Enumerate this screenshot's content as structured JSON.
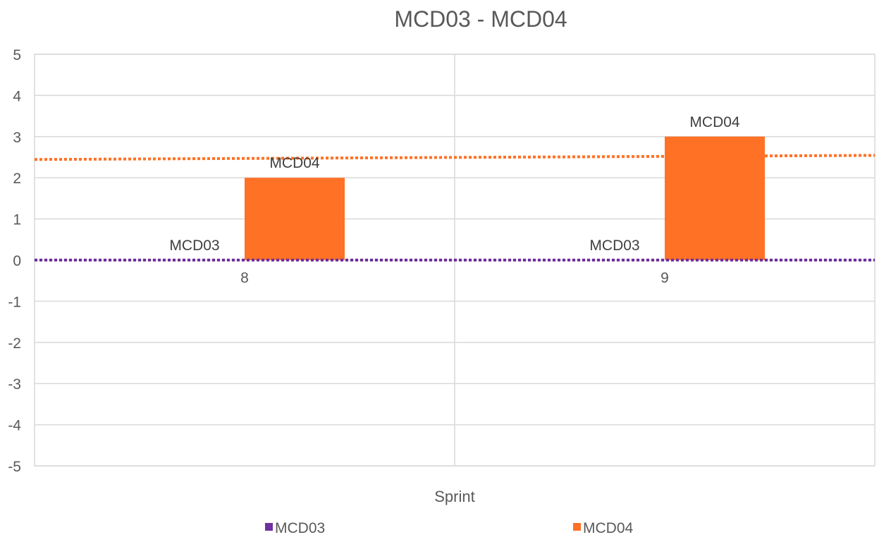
{
  "chart_data": {
    "type": "bar",
    "title": "MCD03 - MCD04",
    "xlabel": "Sprint",
    "ylabel": "",
    "categories": [
      "8",
      "9"
    ],
    "ylim": [
      -5,
      5
    ],
    "yticks": [
      5,
      4,
      3,
      2,
      1,
      0,
      -1,
      -2,
      -3,
      -4,
      -5
    ],
    "grid": true,
    "legend_position": "bottom",
    "series": [
      {
        "name": "MCD03",
        "values": [
          0,
          0
        ],
        "color": "#7030a0",
        "data_label": "MCD03"
      },
      {
        "name": "MCD04",
        "values": [
          2,
          3
        ],
        "color": "#ff7125",
        "data_label": "MCD04"
      }
    ],
    "trendlines": [
      {
        "series": "MCD03",
        "style": "dotted",
        "color": "#7030a0"
      },
      {
        "series": "MCD04",
        "style": "dotted",
        "color": "#ff7125"
      }
    ]
  }
}
